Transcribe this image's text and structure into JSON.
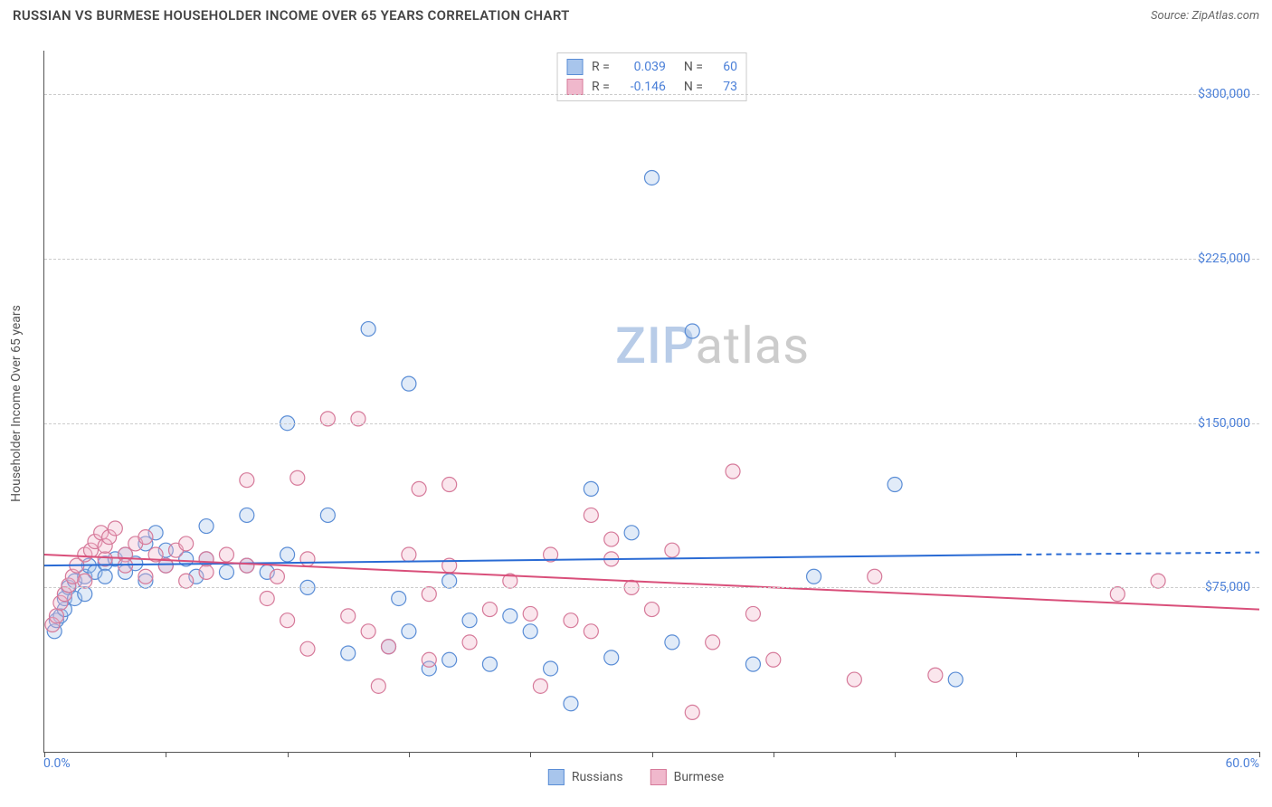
{
  "header": {
    "title": "RUSSIAN VS BURMESE HOUSEHOLDER INCOME OVER 65 YEARS CORRELATION CHART",
    "source_prefix": "Source: ",
    "source": "ZipAtlas.com"
  },
  "chart": {
    "type": "scatter",
    "ylabel": "Householder Income Over 65 years",
    "xlim": [
      0,
      60
    ],
    "ylim": [
      0,
      320000
    ],
    "xtick_label_min": "0.0%",
    "xtick_label_max": "60.0%",
    "xtick_positions": [
      0,
      6,
      12,
      18,
      24,
      30,
      36,
      42,
      48,
      54,
      60
    ],
    "yticks": [
      {
        "v": 75000,
        "label": "$75,000"
      },
      {
        "v": 150000,
        "label": "$150,000"
      },
      {
        "v": 225000,
        "label": "$225,000"
      },
      {
        "v": 300000,
        "label": "$300,000"
      }
    ],
    "grid_color": "#cccccc",
    "grid_dashed": true,
    "background_color": "#ffffff",
    "marker_radius": 8,
    "marker_stroke_width": 1.2,
    "marker_fill_opacity": 0.35,
    "trend_line_width": 2,
    "trend_dash_tail": true,
    "series": [
      {
        "name": "Russians",
        "color_stroke": "#5a8dd6",
        "color_fill": "#a8c5ec",
        "trend_color": "#2a6bd4",
        "R": "0.039",
        "N": "60",
        "trendline": {
          "x1": 0,
          "y1": 85000,
          "x2": 48,
          "y2": 90000,
          "x2_dash": 60,
          "y2_dash": 91000
        },
        "points": [
          [
            0.5,
            55000
          ],
          [
            0.6,
            60000
          ],
          [
            0.8,
            62000
          ],
          [
            1,
            65000
          ],
          [
            1,
            70000
          ],
          [
            1.2,
            75000
          ],
          [
            1.5,
            78000
          ],
          [
            1.5,
            70000
          ],
          [
            2,
            72000
          ],
          [
            2,
            80000
          ],
          [
            2.2,
            85000
          ],
          [
            2.5,
            82000
          ],
          [
            3,
            86000
          ],
          [
            3,
            80000
          ],
          [
            3.5,
            88000
          ],
          [
            4,
            90000
          ],
          [
            4,
            82000
          ],
          [
            4.5,
            86000
          ],
          [
            5,
            95000
          ],
          [
            5,
            78000
          ],
          [
            5.5,
            100000
          ],
          [
            6,
            85000
          ],
          [
            6,
            92000
          ],
          [
            7,
            88000
          ],
          [
            7.5,
            80000
          ],
          [
            8,
            103000
          ],
          [
            8,
            88000
          ],
          [
            9,
            82000
          ],
          [
            10,
            108000
          ],
          [
            10,
            85000
          ],
          [
            11,
            82000
          ],
          [
            12,
            150000
          ],
          [
            12,
            90000
          ],
          [
            13,
            75000
          ],
          [
            14,
            108000
          ],
          [
            15,
            45000
          ],
          [
            16,
            193000
          ],
          [
            17,
            48000
          ],
          [
            17.5,
            70000
          ],
          [
            18,
            55000
          ],
          [
            18,
            168000
          ],
          [
            19,
            38000
          ],
          [
            20,
            42000
          ],
          [
            20,
            78000
          ],
          [
            21,
            60000
          ],
          [
            22,
            40000
          ],
          [
            23,
            62000
          ],
          [
            24,
            55000
          ],
          [
            25,
            38000
          ],
          [
            26,
            22000
          ],
          [
            27,
            120000
          ],
          [
            28,
            43000
          ],
          [
            29,
            100000
          ],
          [
            30,
            262000
          ],
          [
            31,
            50000
          ],
          [
            32,
            192000
          ],
          [
            35,
            40000
          ],
          [
            38,
            80000
          ],
          [
            42,
            122000
          ],
          [
            45,
            33000
          ]
        ]
      },
      {
        "name": "Burmese",
        "color_stroke": "#d67a9a",
        "color_fill": "#f0b8cc",
        "trend_color": "#d94f7a",
        "R": "-0.146",
        "N": "73",
        "trendline": {
          "x1": 0,
          "y1": 90000,
          "x2": 60,
          "y2": 65000
        },
        "points": [
          [
            0.4,
            58000
          ],
          [
            0.6,
            62000
          ],
          [
            0.8,
            68000
          ],
          [
            1,
            72000
          ],
          [
            1.2,
            76000
          ],
          [
            1.4,
            80000
          ],
          [
            1.6,
            85000
          ],
          [
            2,
            90000
          ],
          [
            2,
            78000
          ],
          [
            2.3,
            92000
          ],
          [
            2.5,
            96000
          ],
          [
            2.8,
            100000
          ],
          [
            3,
            88000
          ],
          [
            3,
            94000
          ],
          [
            3.2,
            98000
          ],
          [
            3.5,
            102000
          ],
          [
            4,
            90000
          ],
          [
            4,
            85000
          ],
          [
            4.5,
            95000
          ],
          [
            5,
            80000
          ],
          [
            5,
            98000
          ],
          [
            5.5,
            90000
          ],
          [
            6,
            85000
          ],
          [
            6.5,
            92000
          ],
          [
            7,
            78000
          ],
          [
            7,
            95000
          ],
          [
            8,
            88000
          ],
          [
            8,
            82000
          ],
          [
            9,
            90000
          ],
          [
            10,
            85000
          ],
          [
            10,
            124000
          ],
          [
            11,
            70000
          ],
          [
            11.5,
            80000
          ],
          [
            12,
            60000
          ],
          [
            12.5,
            125000
          ],
          [
            13,
            88000
          ],
          [
            13,
            47000
          ],
          [
            14,
            152000
          ],
          [
            15,
            62000
          ],
          [
            15.5,
            152000
          ],
          [
            16,
            55000
          ],
          [
            16.5,
            30000
          ],
          [
            17,
            48000
          ],
          [
            18,
            90000
          ],
          [
            18.5,
            120000
          ],
          [
            19,
            72000
          ],
          [
            19,
            42000
          ],
          [
            20,
            85000
          ],
          [
            20,
            122000
          ],
          [
            21,
            50000
          ],
          [
            22,
            65000
          ],
          [
            23,
            78000
          ],
          [
            24,
            63000
          ],
          [
            24.5,
            30000
          ],
          [
            25,
            90000
          ],
          [
            26,
            60000
          ],
          [
            27,
            55000
          ],
          [
            27,
            108000
          ],
          [
            28,
            88000
          ],
          [
            28,
            97000
          ],
          [
            29,
            75000
          ],
          [
            30,
            65000
          ],
          [
            31,
            92000
          ],
          [
            32,
            18000
          ],
          [
            33,
            50000
          ],
          [
            34,
            128000
          ],
          [
            35,
            63000
          ],
          [
            36,
            42000
          ],
          [
            40,
            33000
          ],
          [
            41,
            80000
          ],
          [
            44,
            35000
          ],
          [
            53,
            72000
          ],
          [
            55,
            78000
          ]
        ]
      }
    ],
    "legend_labels": {
      "russians": "Russians",
      "burmese": "Burmese",
      "R_prefix": "R =",
      "N_prefix": "N ="
    },
    "watermark": {
      "zip": "ZIP",
      "atlas": "atlas"
    },
    "label_fontsize": 14,
    "title_fontsize": 15,
    "value_color": "#4a7fd8",
    "text_color": "#555555"
  }
}
